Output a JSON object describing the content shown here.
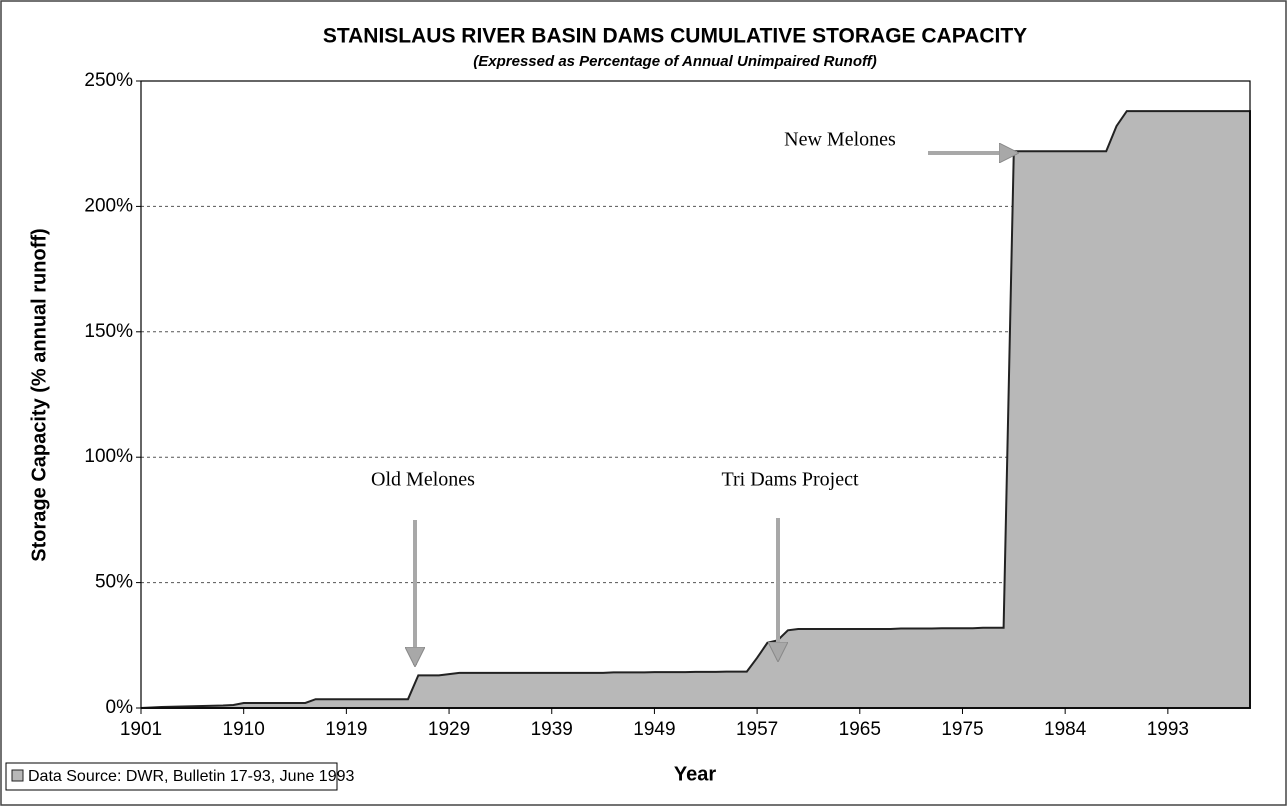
{
  "chart_data": {
    "type": "area",
    "title": "STANISLAUS RIVER BASIN DAMS CUMULATIVE STORAGE CAPACITY",
    "subtitle": "(Expressed as Percentage of Annual Unimpaired Runoff)",
    "y_label": "Storage Capacity (% annual runoff)",
    "x_label": "Year",
    "categories": [
      "1901",
      null,
      null,
      null,
      null,
      null,
      null,
      null,
      null,
      null,
      "1910",
      null,
      null,
      null,
      null,
      null,
      null,
      null,
      null,
      null,
      "1919",
      null,
      null,
      null,
      null,
      null,
      null,
      null,
      null,
      null,
      "1929",
      null,
      null,
      null,
      null,
      null,
      null,
      null,
      null,
      null,
      "1939",
      null,
      null,
      null,
      null,
      null,
      null,
      null,
      null,
      null,
      "1949",
      null,
      null,
      null,
      null,
      null,
      null,
      null,
      null,
      null,
      "1957",
      null,
      null,
      null,
      null,
      null,
      null,
      null,
      null,
      null,
      "1965",
      null,
      null,
      null,
      null,
      null,
      null,
      null,
      null,
      null,
      "1975",
      null,
      null,
      null,
      null,
      null,
      null,
      null,
      null,
      null,
      "1984",
      null,
      null,
      null,
      null,
      null,
      null,
      null,
      null,
      null,
      "1993",
      null,
      null,
      null,
      null,
      null,
      null,
      null,
      null
    ],
    "series": [
      {
        "name": "Data Source: DWR, Bulletin 17-93, June 1993",
        "color": "#b8b8b8",
        "values": [
          0,
          0.2,
          0.4,
          0.5,
          0.6,
          0.7,
          0.8,
          0.9,
          1,
          1.2,
          2,
          2,
          2,
          2,
          2,
          2,
          2,
          3.5,
          3.5,
          3.5,
          3.5,
          3.5,
          3.5,
          3.5,
          3.5,
          3.5,
          3.5,
          13,
          13,
          13,
          13.5,
          14,
          14,
          14,
          14,
          14,
          14,
          14,
          14,
          14,
          14,
          14,
          14,
          14,
          14,
          14,
          14.2,
          14.2,
          14.2,
          14.2,
          14.3,
          14.3,
          14.3,
          14.3,
          14.4,
          14.4,
          14.4,
          14.5,
          14.5,
          14.5,
          20,
          26,
          27,
          31,
          31.5,
          31.5,
          31.5,
          31.5,
          31.5,
          31.5,
          31.5,
          31.5,
          31.5,
          31.5,
          31.7,
          31.7,
          31.7,
          31.7,
          31.8,
          31.8,
          31.8,
          31.8,
          32,
          32,
          32,
          222,
          222,
          222,
          222,
          222,
          222,
          222,
          222,
          222,
          222,
          232,
          238,
          238,
          238,
          238,
          238,
          238,
          238,
          238,
          238,
          238,
          238,
          238,
          238
        ]
      }
    ],
    "ylim": [
      0,
      250
    ],
    "yticks": [
      {
        "value": 0,
        "label": "0%"
      },
      {
        "value": 50,
        "label": "50%"
      },
      {
        "value": 100,
        "label": "100%"
      },
      {
        "value": 150,
        "label": "150%"
      },
      {
        "value": 200,
        "label": "200%"
      },
      {
        "value": 250,
        "label": "250%"
      }
    ],
    "grid": true,
    "annotations": [
      "Old Melones",
      "Tri Dams Project",
      "New Melones"
    ]
  }
}
